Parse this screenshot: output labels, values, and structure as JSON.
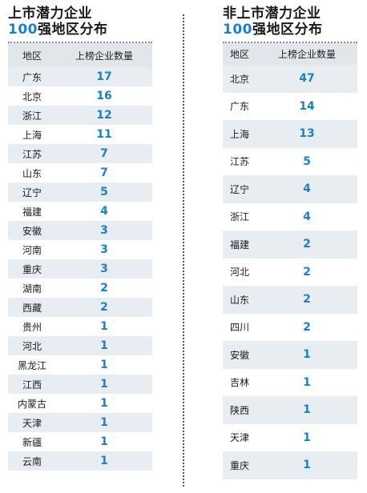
{
  "left": {
    "title_line1": "上市潜力企业",
    "title_num": "100",
    "title_line2_rest": "强地区分布",
    "headers": [
      "地区",
      "上榜企业数量"
    ],
    "rows": [
      {
        "region": "广东",
        "count": "17"
      },
      {
        "region": "北京",
        "count": "16"
      },
      {
        "region": "浙江",
        "count": "12"
      },
      {
        "region": "上海",
        "count": "11"
      },
      {
        "region": "江苏",
        "count": "7"
      },
      {
        "region": "山东",
        "count": "7"
      },
      {
        "region": "辽宁",
        "count": "5"
      },
      {
        "region": "福建",
        "count": "4"
      },
      {
        "region": "安徽",
        "count": "3"
      },
      {
        "region": "河南",
        "count": "3"
      },
      {
        "region": "重庆",
        "count": "3"
      },
      {
        "region": "湖南",
        "count": "2"
      },
      {
        "region": "西藏",
        "count": "2"
      },
      {
        "region": "贵州",
        "count": "1"
      },
      {
        "region": "河北",
        "count": "1"
      },
      {
        "region": "黑龙江",
        "count": "1"
      },
      {
        "region": "江西",
        "count": "1"
      },
      {
        "region": "内蒙古",
        "count": "1"
      },
      {
        "region": "天津",
        "count": "1"
      },
      {
        "region": "新疆",
        "count": "1"
      },
      {
        "region": "云南",
        "count": "1"
      }
    ]
  },
  "right": {
    "title_line1": "非上市潜力企业",
    "title_num": "100",
    "title_line2_rest": "强地区分布",
    "headers": [
      "地区",
      "上榜企业数量"
    ],
    "rows": [
      {
        "region": "北京",
        "count": "47"
      },
      {
        "region": "广东",
        "count": "14"
      },
      {
        "region": "上海",
        "count": "13"
      },
      {
        "region": "江苏",
        "count": "5"
      },
      {
        "region": "辽宁",
        "count": "4"
      },
      {
        "region": "浙江",
        "count": "4"
      },
      {
        "region": "福建",
        "count": "2"
      },
      {
        "region": "河北",
        "count": "2"
      },
      {
        "region": "山东",
        "count": "2"
      },
      {
        "region": "四川",
        "count": "2"
      },
      {
        "region": "安徽",
        "count": "1"
      },
      {
        "region": "吉林",
        "count": "1"
      },
      {
        "region": "陕西",
        "count": "1"
      },
      {
        "region": "天津",
        "count": "1"
      },
      {
        "region": "重庆",
        "count": "1"
      }
    ]
  }
}
